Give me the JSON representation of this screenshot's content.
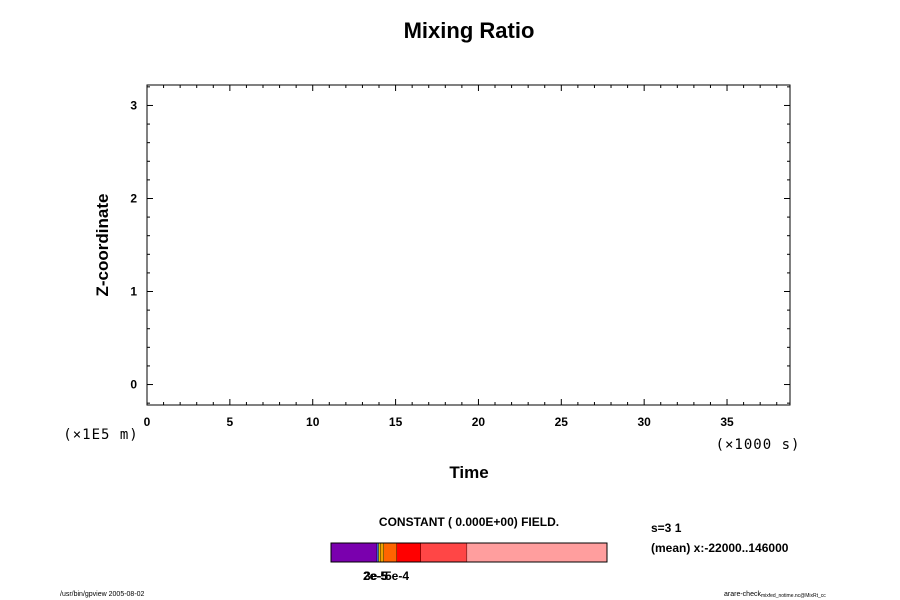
{
  "chart_data": {
    "type": "heatmap",
    "title": "Mixing Ratio",
    "xlabel": "Time",
    "ylabel": "Z-coordinate",
    "x_unit": "(×1000 s)",
    "y_unit": "(×1E5 m)",
    "xlim": [
      0,
      38.8
    ],
    "ylim": [
      -0.22,
      3.22
    ],
    "x_ticks": [
      0,
      5,
      10,
      15,
      20,
      25,
      30,
      35
    ],
    "y_ticks": [
      0,
      1,
      2,
      3
    ],
    "x_tick_labels": [
      "0",
      "5",
      "10",
      "15",
      "20",
      "25",
      "30",
      "35"
    ],
    "y_tick_labels": [
      "0",
      "1",
      "2",
      "3"
    ],
    "field_note": "CONSTANT ( 0.000E+00) FIELD.",
    "colorbar": {
      "tick_label_overlap": "2e-5",
      "tick_label_overlap_b": "3e-5",
      "tick_label": "5e-4",
      "segments": [
        {
          "width": 0.167,
          "color": "#7a00ae"
        },
        {
          "width": 0.006,
          "color": "#3a6be0"
        },
        {
          "width": 0.006,
          "color": "#d8c400"
        },
        {
          "width": 0.013,
          "color": "#f0a000"
        },
        {
          "width": 0.047,
          "color": "#ff6400"
        },
        {
          "width": 0.087,
          "color": "#ff0000"
        },
        {
          "width": 0.167,
          "color": "#ff4646"
        },
        {
          "width": 0.507,
          "color": "#ff9e9e"
        }
      ]
    }
  },
  "info": {
    "slice": "s=3 1",
    "mean": "(mean) x:-22000..146000"
  },
  "footer": {
    "left": "/usr/bin/gpview 2005-08-02",
    "right_main": "arare-check",
    "right_sub": "mixfed_notime.nc@MixRt_cc"
  }
}
